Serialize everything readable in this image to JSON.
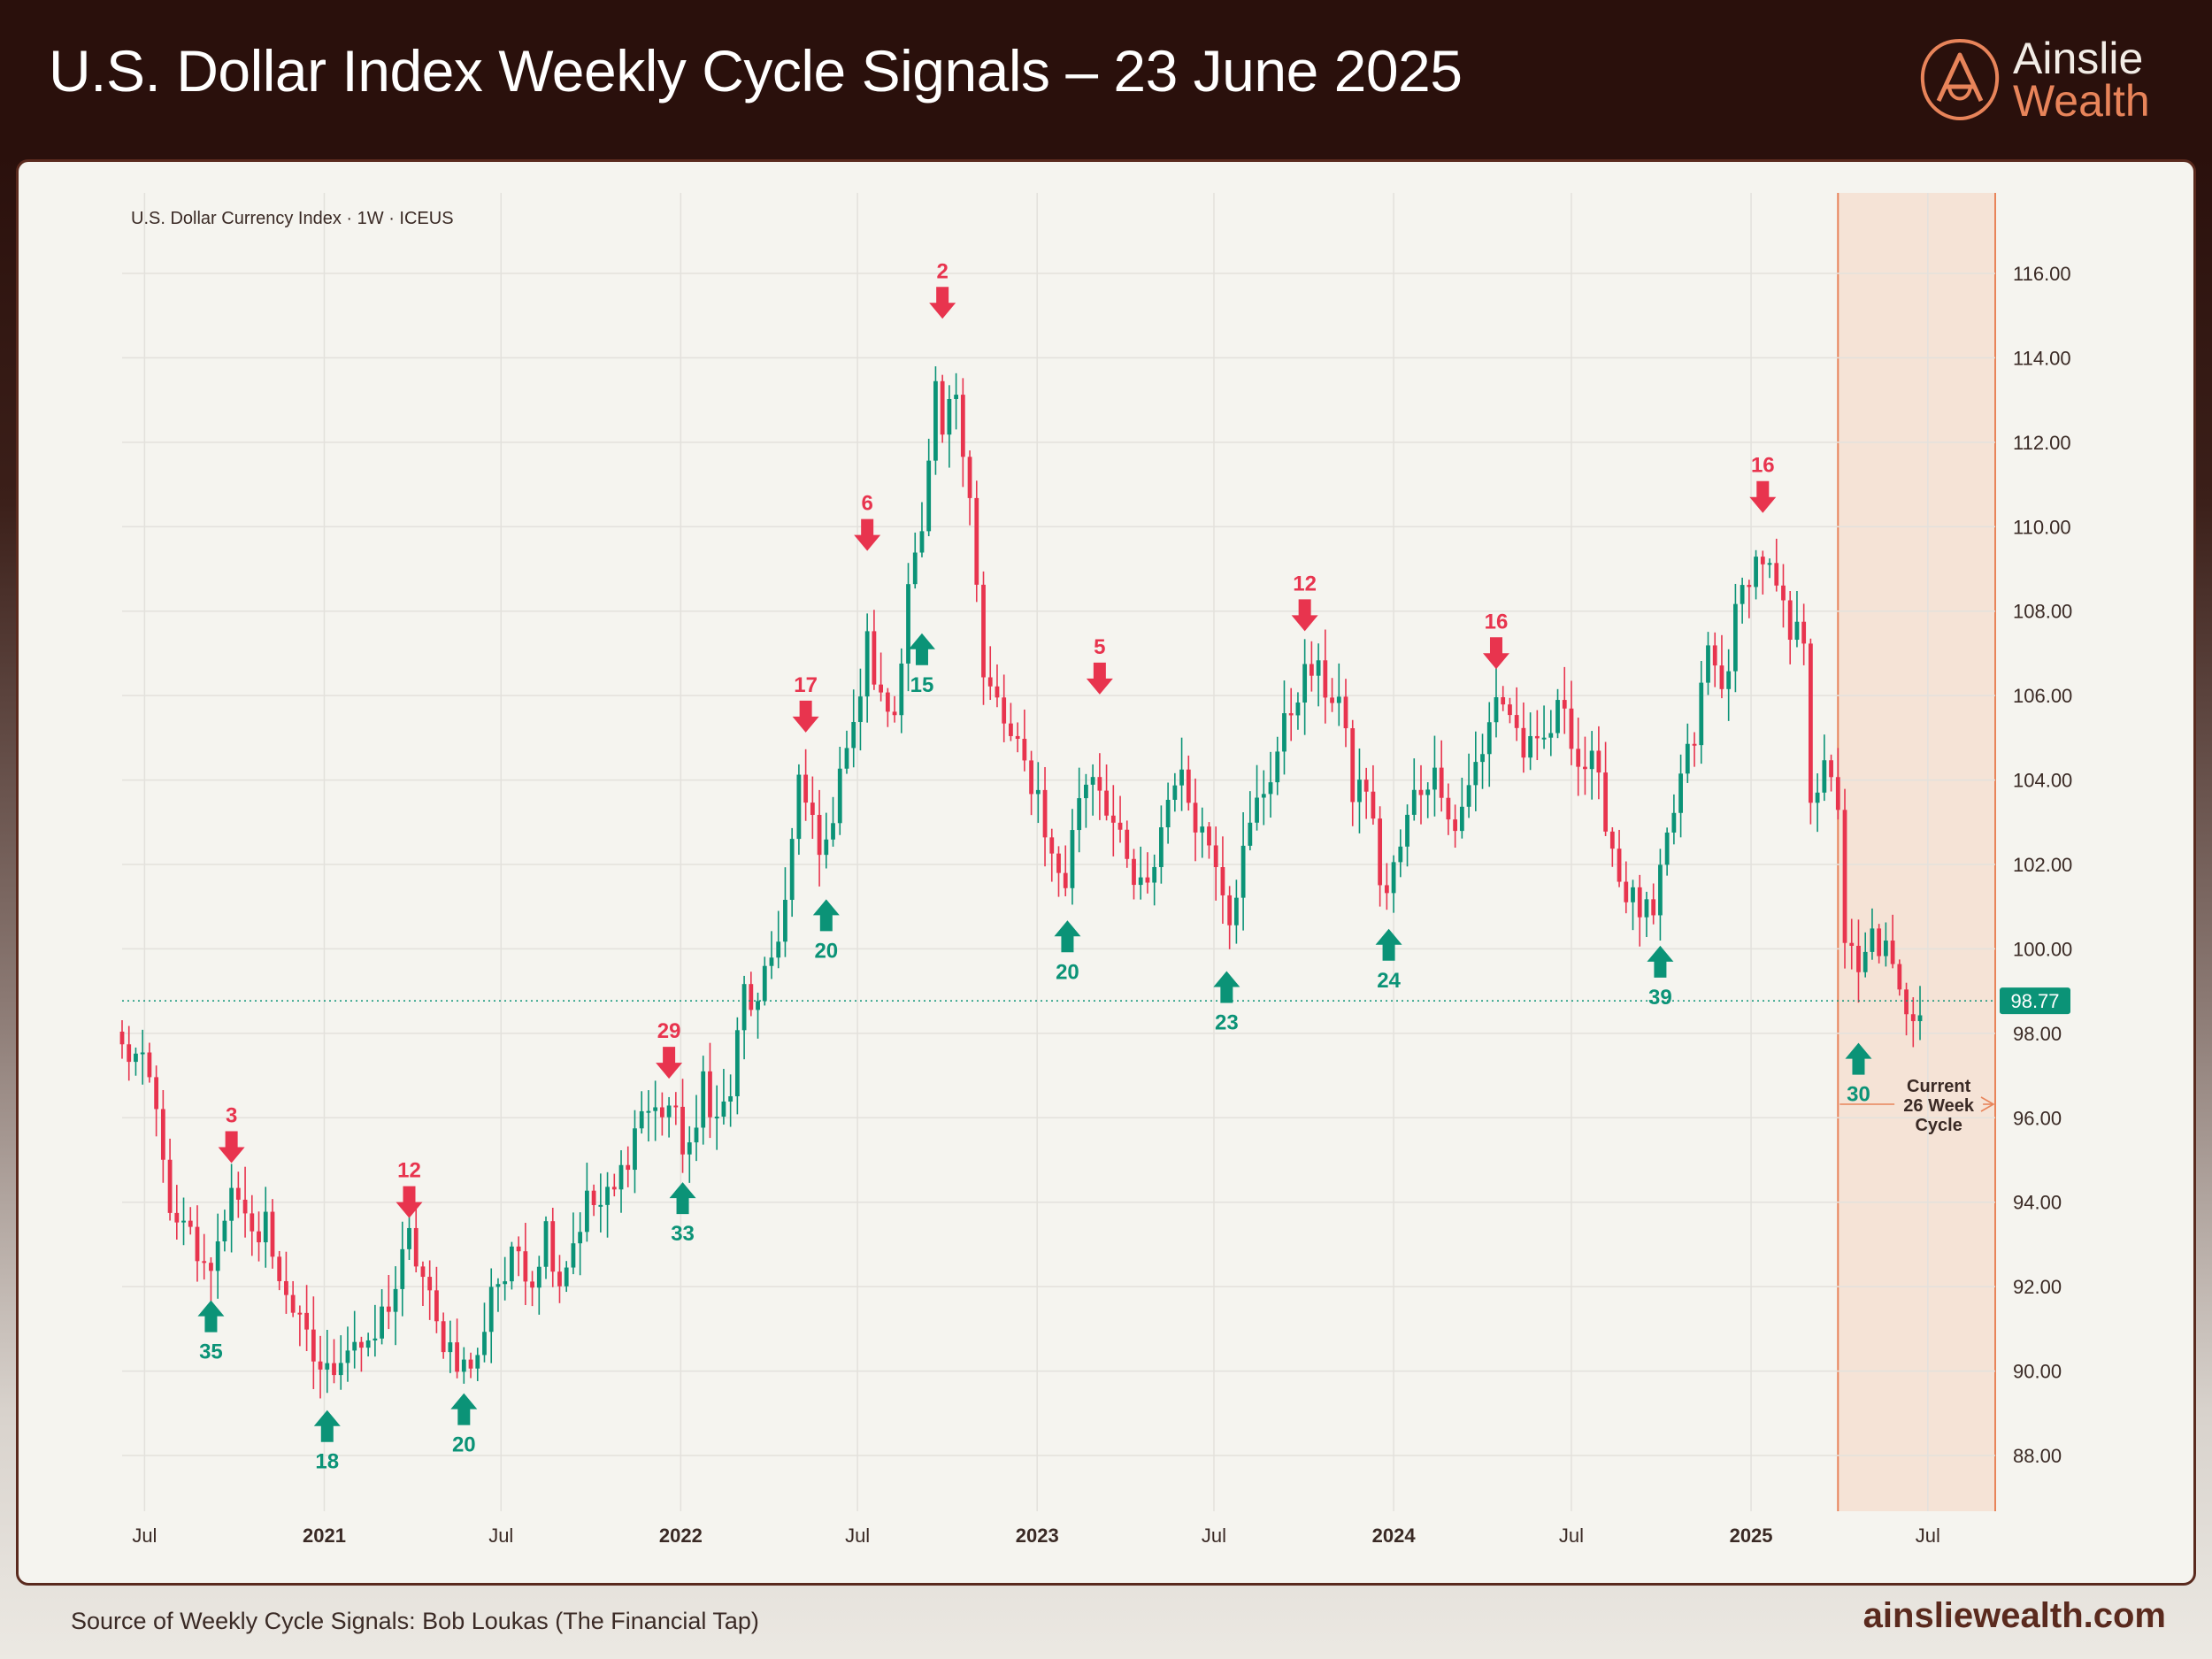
{
  "header": {
    "title": "U.S. Dollar Index Weekly Cycle Signals – 23 June 2025",
    "logo": {
      "line1": "Ainslie",
      "line2": "Wealth",
      "icon": "ainslie-a-logo-icon"
    }
  },
  "footer": {
    "source": "Source of Weekly Cycle Signals: Bob Loukas (The Financial Tap)",
    "url": "ainsliewealth.com"
  },
  "colors": {
    "up": "#0b9377",
    "down": "#e8344e",
    "header_bg": "#2a100c",
    "panel_bg": "#f5f4ef",
    "highlight": "#f5e3d6",
    "accent": "#e8845a"
  },
  "chart_data": {
    "type": "candlestick",
    "instrument_label": "U.S. Dollar Currency Index · 1W · ICEUS",
    "y_range": [
      87,
      117
    ],
    "y_ticks": [
      "116.00",
      "114.00",
      "112.00",
      "110.00",
      "108.00",
      "106.00",
      "104.00",
      "102.00",
      "100.00",
      "98.00",
      "96.00",
      "94.00",
      "92.00",
      "90.00",
      "88.00"
    ],
    "x_range": [
      "2020-06-08",
      "2025-09-08"
    ],
    "x_ticks": [
      {
        "date": "2020-07-01",
        "label": "Jul",
        "bold": false
      },
      {
        "date": "2021-01-01",
        "label": "2021",
        "bold": true
      },
      {
        "date": "2021-07-01",
        "label": "Jul",
        "bold": false
      },
      {
        "date": "2022-01-01",
        "label": "2022",
        "bold": true
      },
      {
        "date": "2022-07-01",
        "label": "Jul",
        "bold": false
      },
      {
        "date": "2023-01-01",
        "label": "2023",
        "bold": true
      },
      {
        "date": "2023-07-01",
        "label": "Jul",
        "bold": false
      },
      {
        "date": "2024-01-01",
        "label": "2024",
        "bold": true
      },
      {
        "date": "2024-07-01",
        "label": "Jul",
        "bold": false
      },
      {
        "date": "2025-01-01",
        "label": "2025",
        "bold": true
      },
      {
        "date": "2025-07-01",
        "label": "Jul",
        "bold": false
      }
    ],
    "current_price": 98.77,
    "current_price_label": "98.77",
    "highlight_period": {
      "start": "2025-03-31",
      "end": "2025-09-08"
    },
    "cycle_label_lines": [
      "Current",
      "26 Week",
      "Cycle"
    ],
    "price_path": [
      [
        "2020-06-08",
        97.6
      ],
      [
        "2020-06-22",
        97.4
      ],
      [
        "2020-07-06",
        96.8
      ],
      [
        "2020-07-20",
        95.3
      ],
      [
        "2020-07-27",
        93.4
      ],
      [
        "2020-08-17",
        93.2
      ],
      [
        "2020-08-31",
        92.3
      ],
      [
        "2020-09-14",
        93.0
      ],
      [
        "2020-09-28",
        94.6
      ],
      [
        "2020-10-05",
        93.8
      ],
      [
        "2020-10-19",
        93.0
      ],
      [
        "2020-11-02",
        93.8
      ],
      [
        "2020-11-09",
        92.5
      ],
      [
        "2020-11-23",
        92.0
      ],
      [
        "2020-12-07",
        91.0
      ],
      [
        "2020-12-21",
        90.3
      ],
      [
        "2021-01-04",
        89.9
      ],
      [
        "2021-01-18",
        90.5
      ],
      [
        "2021-02-01",
        90.8
      ],
      [
        "2021-02-15",
        90.3
      ],
      [
        "2021-03-01",
        91.3
      ],
      [
        "2021-03-15",
        92.0
      ],
      [
        "2021-03-29",
        93.1
      ],
      [
        "2021-04-12",
        92.2
      ],
      [
        "2021-04-26",
        91.0
      ],
      [
        "2021-05-10",
        90.6
      ],
      [
        "2021-05-24",
        90.1
      ],
      [
        "2021-06-07",
        90.2
      ],
      [
        "2021-06-21",
        92.1
      ],
      [
        "2021-07-05",
        92.2
      ],
      [
        "2021-07-19",
        92.9
      ],
      [
        "2021-08-02",
        92.2
      ],
      [
        "2021-08-16",
        93.4
      ],
      [
        "2021-08-30",
        92.2
      ],
      [
        "2021-09-13",
        93.1
      ],
      [
        "2021-09-27",
        94.0
      ],
      [
        "2021-10-11",
        93.9
      ],
      [
        "2021-10-25",
        94.2
      ],
      [
        "2021-11-08",
        95.2
      ],
      [
        "2021-11-22",
        96.2
      ],
      [
        "2021-12-06",
        96.1
      ],
      [
        "2021-12-20",
        96.3
      ],
      [
        "2022-01-03",
        95.4
      ],
      [
        "2022-01-17",
        95.4
      ],
      [
        "2022-01-24",
        97.0
      ],
      [
        "2022-02-07",
        95.9
      ],
      [
        "2022-02-21",
        96.6
      ],
      [
        "2022-03-07",
        99.0
      ],
      [
        "2022-03-21",
        98.5
      ],
      [
        "2022-04-04",
        99.8
      ],
      [
        "2022-04-18",
        101.1
      ],
      [
        "2022-05-02",
        103.8
      ],
      [
        "2022-05-16",
        103.0
      ],
      [
        "2022-05-30",
        102.2
      ],
      [
        "2022-06-13",
        104.5
      ],
      [
        "2022-06-27",
        105.1
      ],
      [
        "2022-07-11",
        107.2
      ],
      [
        "2022-07-25",
        105.8
      ],
      [
        "2022-08-08",
        105.6
      ],
      [
        "2022-08-22",
        108.8
      ],
      [
        "2022-09-05",
        109.6
      ],
      [
        "2022-09-19",
        113.0
      ],
      [
        "2022-09-26",
        112.1
      ],
      [
        "2022-10-10",
        113.3
      ],
      [
        "2022-10-24",
        110.9
      ],
      [
        "2022-11-07",
        106.3
      ],
      [
        "2022-11-21",
        105.8
      ],
      [
        "2022-12-05",
        104.9
      ],
      [
        "2022-12-19",
        104.3
      ],
      [
        "2023-01-02",
        103.7
      ],
      [
        "2023-01-16",
        102.1
      ],
      [
        "2023-01-30",
        101.6
      ],
      [
        "2023-02-13",
        103.7
      ],
      [
        "2023-02-27",
        104.3
      ],
      [
        "2023-03-13",
        103.5
      ],
      [
        "2023-03-27",
        102.4
      ],
      [
        "2023-04-10",
        101.5
      ],
      [
        "2023-04-24",
        101.3
      ],
      [
        "2023-05-08",
        102.9
      ],
      [
        "2023-05-22",
        104.2
      ],
      [
        "2023-06-05",
        103.6
      ],
      [
        "2023-06-19",
        102.8
      ],
      [
        "2023-07-03",
        102.3
      ],
      [
        "2023-07-17",
        100.9
      ],
      [
        "2023-07-31",
        102.2
      ],
      [
        "2023-08-14",
        103.4
      ],
      [
        "2023-08-28",
        104.2
      ],
      [
        "2023-09-11",
        105.2
      ],
      [
        "2023-09-25",
        106.2
      ],
      [
        "2023-10-09",
        106.6
      ],
      [
        "2023-10-23",
        106.2
      ],
      [
        "2023-11-06",
        105.9
      ],
      [
        "2023-11-20",
        103.7
      ],
      [
        "2023-12-04",
        103.9
      ],
      [
        "2023-12-18",
        101.7
      ],
      [
        "2023-12-25",
        101.3
      ],
      [
        "2024-01-08",
        102.4
      ],
      [
        "2024-01-22",
        103.6
      ],
      [
        "2024-02-05",
        104.1
      ],
      [
        "2024-02-19",
        104.0
      ],
      [
        "2024-03-04",
        102.8
      ],
      [
        "2024-03-18",
        104.0
      ],
      [
        "2024-04-01",
        104.5
      ],
      [
        "2024-04-15",
        106.1
      ],
      [
        "2024-04-29",
        105.6
      ],
      [
        "2024-05-13",
        104.7
      ],
      [
        "2024-05-27",
        104.6
      ],
      [
        "2024-06-10",
        105.2
      ],
      [
        "2024-06-24",
        105.9
      ],
      [
        "2024-07-08",
        104.4
      ],
      [
        "2024-07-22",
        104.3
      ],
      [
        "2024-08-05",
        103.2
      ],
      [
        "2024-08-19",
        101.7
      ],
      [
        "2024-09-02",
        101.1
      ],
      [
        "2024-09-23",
        100.6
      ],
      [
        "2024-10-07",
        102.5
      ],
      [
        "2024-10-21",
        104.0
      ],
      [
        "2024-11-04",
        105.0
      ],
      [
        "2024-11-18",
        107.1
      ],
      [
        "2024-12-02",
        106.1
      ],
      [
        "2024-12-16",
        107.8
      ],
      [
        "2024-12-30",
        109.0
      ],
      [
        "2025-01-13",
        109.3
      ],
      [
        "2025-01-27",
        108.4
      ],
      [
        "2025-02-10",
        107.3
      ],
      [
        "2025-02-24",
        107.5
      ],
      [
        "2025-03-03",
        103.8
      ],
      [
        "2025-03-17",
        104.1
      ],
      [
        "2025-03-31",
        103.5
      ],
      [
        "2025-04-07",
        100.3
      ],
      [
        "2025-04-21",
        99.2
      ],
      [
        "2025-05-05",
        100.3
      ],
      [
        "2025-05-19",
        99.9
      ],
      [
        "2025-06-02",
        98.8
      ],
      [
        "2025-06-16",
        98.6
      ],
      [
        "2025-06-23",
        98.8
      ]
    ],
    "peak_signals": [
      {
        "date": "2020-09-28",
        "value": 94.8,
        "label": "3"
      },
      {
        "date": "2021-03-29",
        "value": 93.5,
        "label": "12"
      },
      {
        "date": "2021-12-20",
        "value": 96.8,
        "label": "29"
      },
      {
        "date": "2022-05-09",
        "value": 105.0,
        "label": "17"
      },
      {
        "date": "2022-07-11",
        "value": 109.3,
        "label": "6"
      },
      {
        "date": "2022-09-26",
        "value": 114.8,
        "label": "2"
      },
      {
        "date": "2023-03-06",
        "value": 105.9,
        "label": "5"
      },
      {
        "date": "2023-10-02",
        "value": 107.4,
        "label": "12"
      },
      {
        "date": "2024-04-15",
        "value": 106.5,
        "label": "16"
      },
      {
        "date": "2025-01-13",
        "value": 110.2,
        "label": "16"
      }
    ],
    "trough_signals": [
      {
        "date": "2020-09-07",
        "value": 91.8,
        "label": "35"
      },
      {
        "date": "2021-01-04",
        "value": 89.2,
        "label": "18"
      },
      {
        "date": "2021-05-24",
        "value": 89.6,
        "label": "20"
      },
      {
        "date": "2022-01-03",
        "value": 94.6,
        "label": "33"
      },
      {
        "date": "2022-05-30",
        "value": 101.3,
        "label": "20"
      },
      {
        "date": "2022-09-05",
        "value": 107.6,
        "label": "15"
      },
      {
        "date": "2023-02-01",
        "value": 100.8,
        "label": "20"
      },
      {
        "date": "2023-07-14",
        "value": 99.6,
        "label": "23"
      },
      {
        "date": "2023-12-27",
        "value": 100.6,
        "label": "24"
      },
      {
        "date": "2024-09-30",
        "value": 100.2,
        "label": "39"
      },
      {
        "date": "2025-04-21",
        "value": 97.9,
        "label": "30"
      }
    ]
  }
}
